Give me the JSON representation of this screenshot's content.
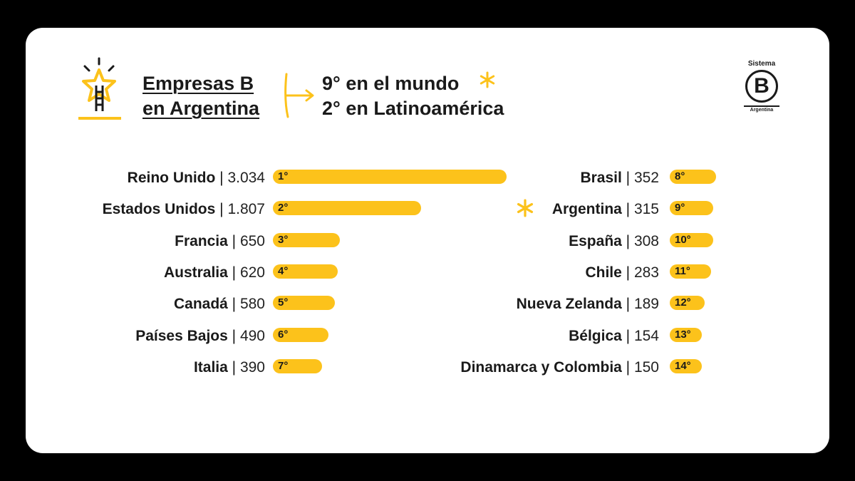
{
  "header": {
    "title_line1": "Empresas B",
    "title_line2": "en Argentina",
    "rank_world": "9° en el mundo",
    "rank_latam": "2° en Latinoamérica",
    "icon_star_ladder": "star-ladder-icon",
    "icon_asterisk": "asterisk-icon"
  },
  "logo": {
    "top": "Sistema",
    "letter": "B",
    "bottom": "Argentina"
  },
  "colors": {
    "bar": "#fcc21b",
    "text": "#1a1a1a",
    "background": "#ffffff",
    "frame": "#000000"
  },
  "chart_data": {
    "type": "bar",
    "orientation": "horizontal",
    "title": "",
    "xlabel": "",
    "ylabel": "",
    "series": [
      {
        "values": [
          3034,
          1807,
          650,
          620,
          580,
          490,
          390,
          352,
          315,
          308,
          283,
          189,
          154,
          150
        ]
      }
    ],
    "categories": [
      "Reino Unido",
      "Estados Unidos",
      "Francia",
      "Australia",
      "Canadá",
      "Países Bajos",
      "Italia",
      "Brasil",
      "Argentina",
      "España",
      "Chile",
      "Nueva Zelanda",
      "Bélgica",
      "Dinamarca y Colombia"
    ],
    "value_labels": [
      "3.034",
      "1.807",
      "650",
      "620",
      "580",
      "490",
      "390",
      "352",
      "315",
      "308",
      "283",
      "189",
      "154",
      "150"
    ],
    "rank_labels": [
      "1°",
      "2°",
      "3°",
      "4°",
      "5°",
      "6°",
      "7°",
      "8°",
      "9°",
      "10°",
      "11°",
      "12°",
      "13°",
      "14°"
    ],
    "highlight": "Argentina",
    "separator": "|",
    "grid": false,
    "legend": "none"
  }
}
